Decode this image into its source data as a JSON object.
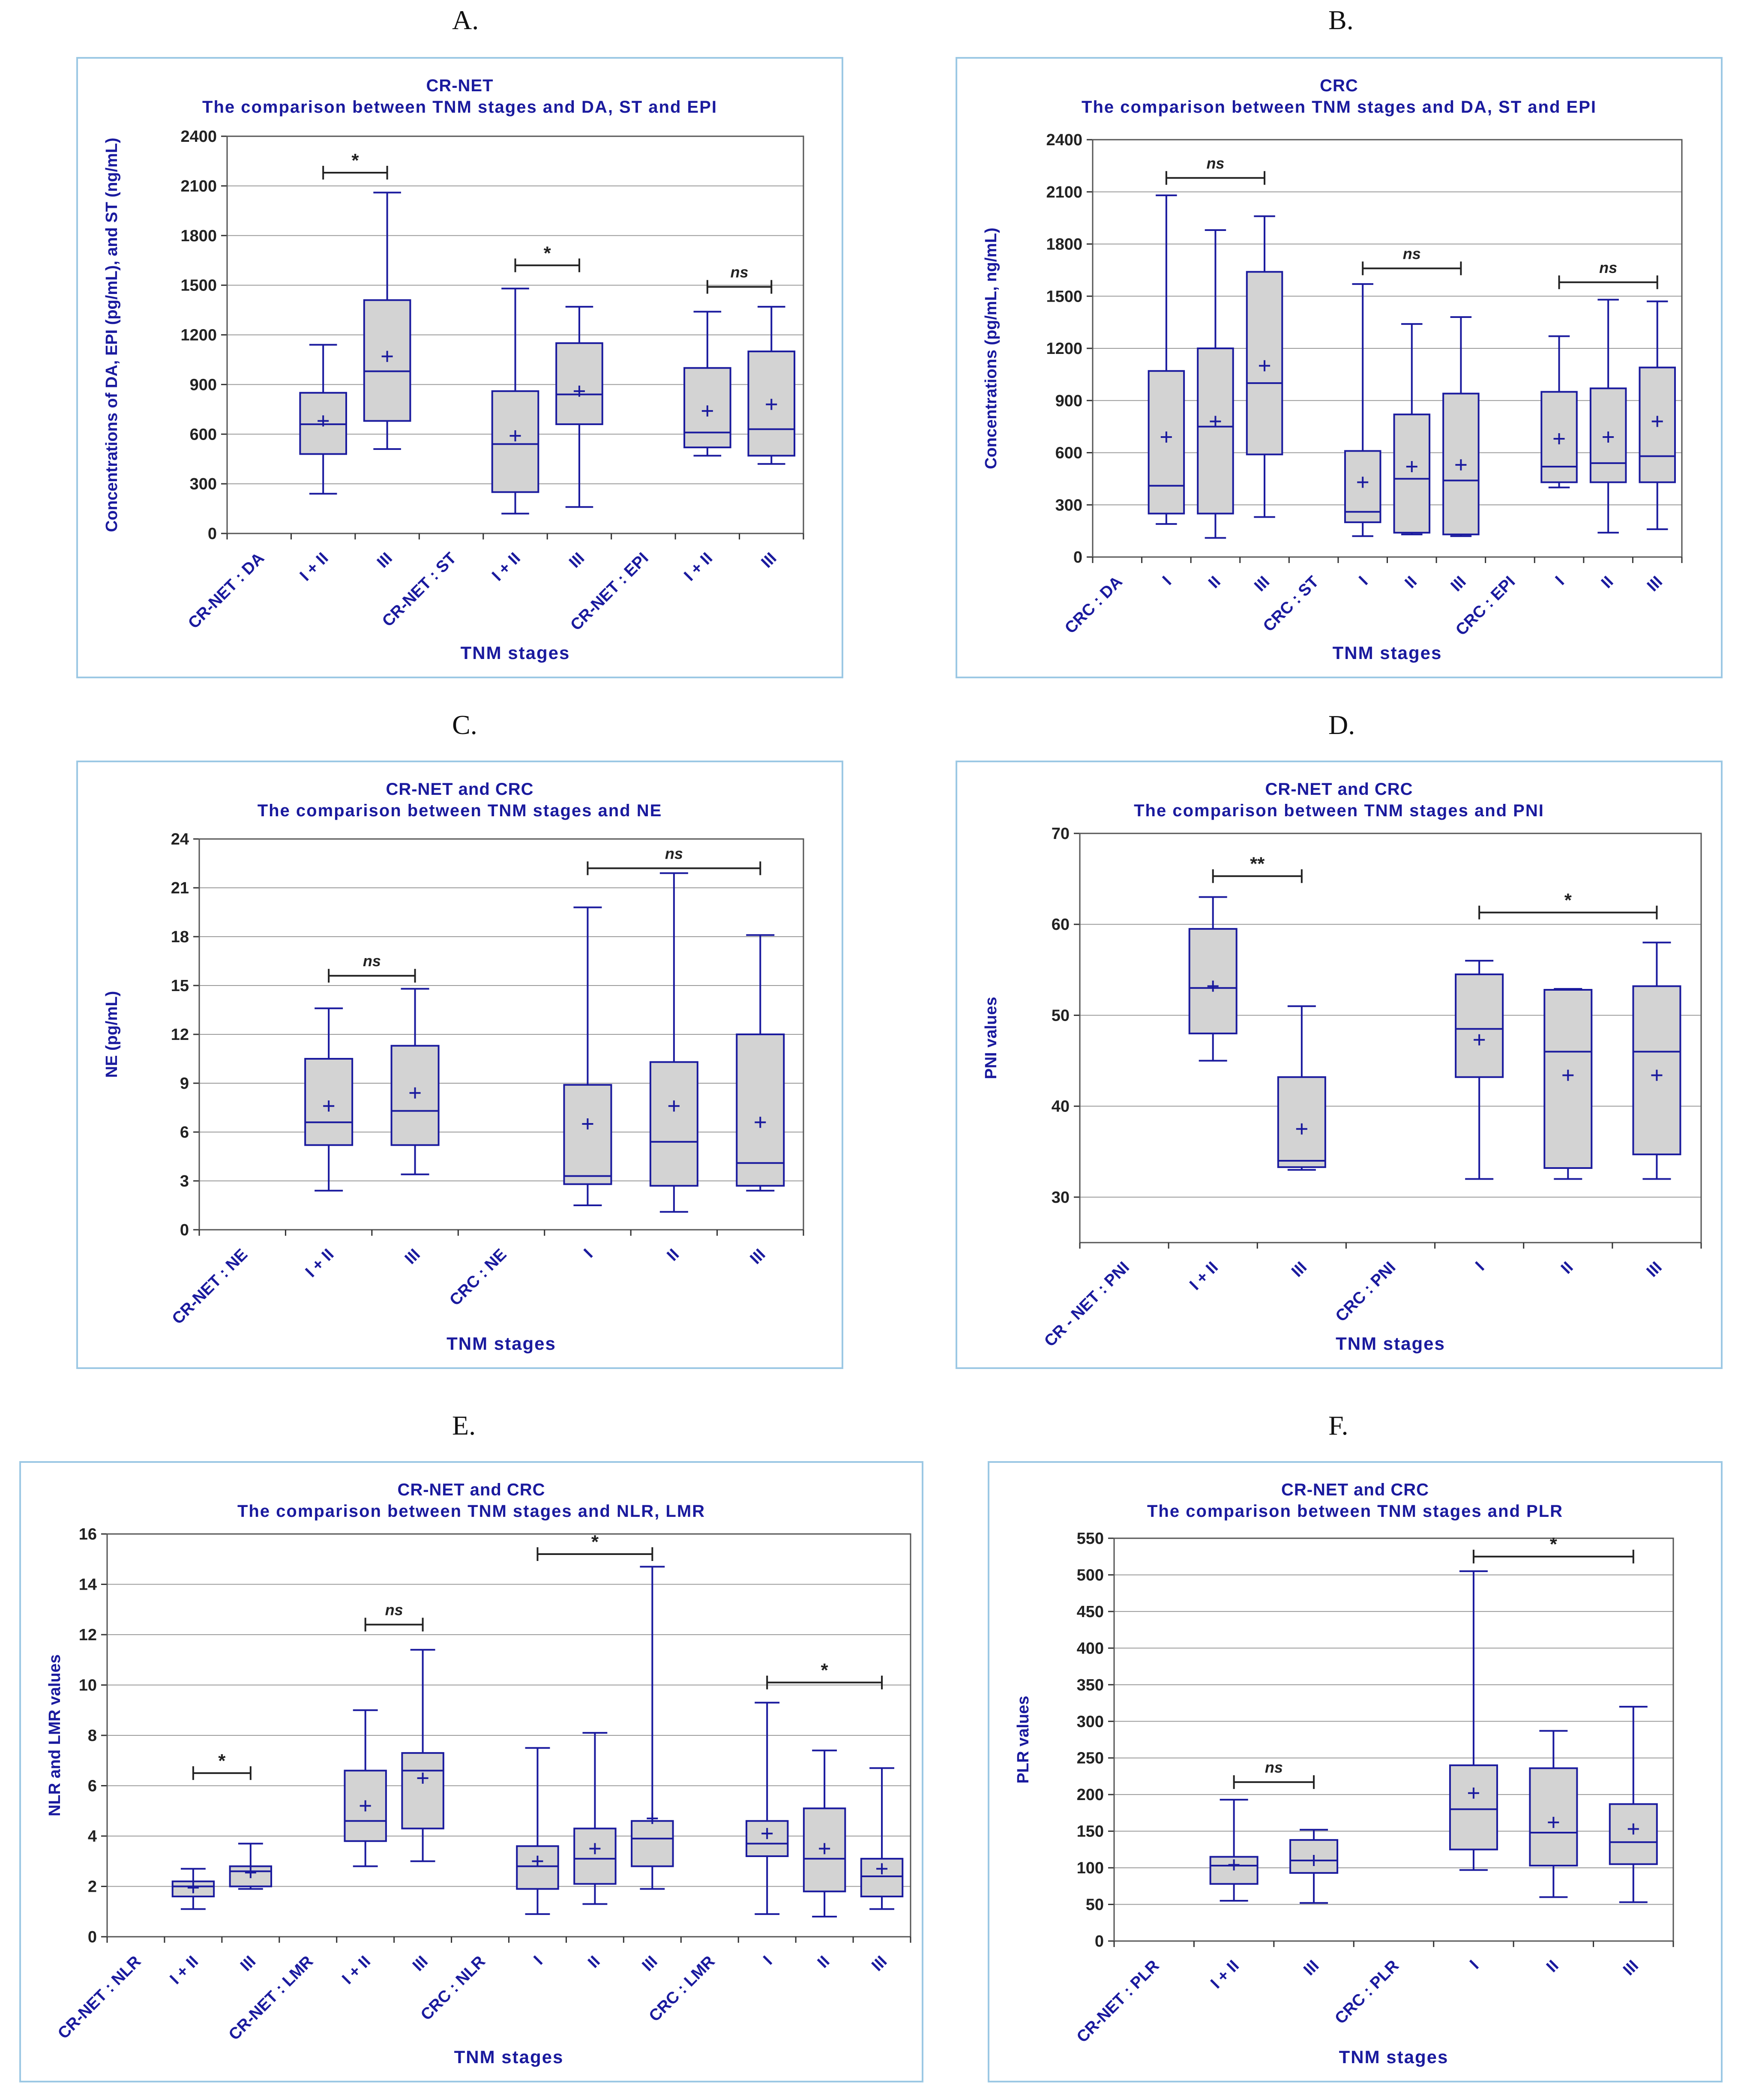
{
  "colors": {
    "ink": "#1a1a9e",
    "box_fill": "#d3d3d3",
    "grid": "#9a9a9a",
    "frame": "#9cc8e4",
    "plot_border": "#555555"
  },
  "chart_data": [
    {
      "panel": "A.",
      "type": "box",
      "title": "CR-NET",
      "subtitle": "The comparison between TNM stages and DA, ST and EPI",
      "xlabel": "TNM stages",
      "ylabel": "Concentrations of DA, EPI (pg/mL), and ST (ng/mL)",
      "ylim": [
        0,
        2400
      ],
      "yticks": [
        0,
        300,
        600,
        900,
        1200,
        1500,
        1800,
        2100,
        2400
      ],
      "categories": [
        "CR-NET : DA",
        "I + II",
        "III",
        "CR-NET : ST",
        "I + II",
        "III",
        "CR-NET : EPI",
        "I + II",
        "III"
      ],
      "boxes": [
        {
          "cat": 1,
          "min": 240,
          "q1": 480,
          "median": 660,
          "q3": 850,
          "max": 1140,
          "mean": 680
        },
        {
          "cat": 2,
          "min": 510,
          "q1": 680,
          "median": 980,
          "q3": 1410,
          "max": 2060,
          "mean": 1070
        },
        {
          "cat": 4,
          "min": 120,
          "q1": 250,
          "median": 540,
          "q3": 860,
          "max": 1480,
          "mean": 590
        },
        {
          "cat": 5,
          "min": 160,
          "q1": 660,
          "median": 840,
          "q3": 1150,
          "max": 1370,
          "mean": 860
        },
        {
          "cat": 7,
          "min": 470,
          "q1": 520,
          "median": 610,
          "q3": 1000,
          "max": 1340,
          "mean": 740
        },
        {
          "cat": 8,
          "min": 420,
          "q1": 470,
          "median": 630,
          "q3": 1100,
          "max": 1370,
          "mean": 780
        }
      ],
      "annotations": [
        {
          "from": 1,
          "to": 2,
          "y": 2180,
          "label": "*"
        },
        {
          "from": 4,
          "to": 5,
          "y": 1620,
          "label": "*"
        },
        {
          "from": 7,
          "to": 8,
          "y": 1490,
          "label": "ns"
        }
      ]
    },
    {
      "panel": "B.",
      "type": "box",
      "title": "CRC",
      "subtitle": "The comparison between TNM stages and DA, ST and EPI",
      "xlabel": "TNM stages",
      "ylabel": "Concentrations (pg/mL, ng/mL)",
      "ylim": [
        0,
        2400
      ],
      "yticks": [
        0,
        300,
        600,
        900,
        1200,
        1500,
        1800,
        2100,
        2400
      ],
      "categories": [
        "CRC : DA",
        "I",
        "II",
        "III",
        "CRC : ST",
        "I",
        "II",
        "III",
        "CRC : EPI",
        "I",
        "II",
        "III"
      ],
      "boxes": [
        {
          "cat": 1,
          "min": 190,
          "q1": 250,
          "median": 410,
          "q3": 1070,
          "max": 2080,
          "mean": 690
        },
        {
          "cat": 2,
          "min": 110,
          "q1": 250,
          "median": 750,
          "q3": 1200,
          "max": 1880,
          "mean": 780
        },
        {
          "cat": 3,
          "min": 230,
          "q1": 590,
          "median": 1000,
          "q3": 1640,
          "max": 1960,
          "mean": 1100
        },
        {
          "cat": 5,
          "min": 120,
          "q1": 200,
          "median": 260,
          "q3": 610,
          "max": 1570,
          "mean": 430
        },
        {
          "cat": 6,
          "min": 130,
          "q1": 140,
          "median": 450,
          "q3": 820,
          "max": 1340,
          "mean": 520
        },
        {
          "cat": 7,
          "min": 120,
          "q1": 130,
          "median": 440,
          "q3": 940,
          "max": 1380,
          "mean": 530
        },
        {
          "cat": 9,
          "min": 400,
          "q1": 430,
          "median": 520,
          "q3": 950,
          "max": 1270,
          "mean": 680
        },
        {
          "cat": 10,
          "min": 140,
          "q1": 430,
          "median": 540,
          "q3": 970,
          "max": 1480,
          "mean": 690
        },
        {
          "cat": 11,
          "min": 160,
          "q1": 430,
          "median": 580,
          "q3": 1090,
          "max": 1470,
          "mean": 780
        }
      ],
      "annotations": [
        {
          "from": 1,
          "to": 3,
          "y": 2180,
          "label": "ns"
        },
        {
          "from": 5,
          "to": 7,
          "y": 1660,
          "label": "ns"
        },
        {
          "from": 9,
          "to": 11,
          "y": 1580,
          "label": "ns"
        }
      ]
    },
    {
      "panel": "C.",
      "type": "box",
      "title": "CR-NET and CRC",
      "subtitle": "The comparison between TNM stages and NE",
      "xlabel": "TNM stages",
      "ylabel": "NE (pg/mL)",
      "ylim": [
        0,
        24
      ],
      "yticks": [
        0,
        3,
        6,
        9,
        12,
        15,
        18,
        21,
        24
      ],
      "categories": [
        "CR-NET : NE",
        "I + II",
        "III",
        "CRC : NE",
        "I",
        "II",
        "III"
      ],
      "boxes": [
        {
          "cat": 1,
          "min": 2.4,
          "q1": 5.2,
          "median": 6.6,
          "q3": 10.5,
          "max": 13.6,
          "mean": 7.6
        },
        {
          "cat": 2,
          "min": 3.4,
          "q1": 5.2,
          "median": 7.3,
          "q3": 11.3,
          "max": 14.8,
          "mean": 8.4
        },
        {
          "cat": 4,
          "min": 1.5,
          "q1": 2.8,
          "median": 3.3,
          "q3": 8.9,
          "max": 19.8,
          "mean": 6.5
        },
        {
          "cat": 5,
          "min": 1.1,
          "q1": 2.7,
          "median": 5.4,
          "q3": 10.3,
          "max": 21.9,
          "mean": 7.6
        },
        {
          "cat": 6,
          "min": 2.4,
          "q1": 2.7,
          "median": 4.1,
          "q3": 12.0,
          "max": 18.1,
          "mean": 6.6
        }
      ],
      "annotations": [
        {
          "from": 1,
          "to": 2,
          "y": 15.6,
          "label": "ns"
        },
        {
          "from": 4,
          "to": 6,
          "y": 22.2,
          "label": "ns"
        }
      ]
    },
    {
      "panel": "D.",
      "type": "box",
      "title": "CR-NET and CRC",
      "subtitle": "The comparison between TNM stages and PNI",
      "xlabel": "TNM stages",
      "ylabel": "PNI values",
      "ylim": [
        25,
        70
      ],
      "yticks": [
        30,
        40,
        50,
        60,
        70
      ],
      "categories": [
        "CR - NET : PNI",
        "I + II",
        "III",
        "CRC : PNI",
        "I",
        "II",
        "III"
      ],
      "boxes": [
        {
          "cat": 1,
          "min": 45,
          "q1": 48,
          "median": 53,
          "q3": 59.5,
          "max": 63,
          "mean": 53.2
        },
        {
          "cat": 2,
          "min": 33,
          "q1": 33.3,
          "median": 34,
          "q3": 43.2,
          "max": 51,
          "mean": 37.5
        },
        {
          "cat": 4,
          "min": 32,
          "q1": 43.2,
          "median": 48.5,
          "q3": 54.5,
          "max": 56,
          "mean": 47.3
        },
        {
          "cat": 5,
          "min": 32,
          "q1": 33.2,
          "median": 46,
          "q3": 52.8,
          "max": 52.9,
          "mean": 43.4
        },
        {
          "cat": 6,
          "min": 32,
          "q1": 34.7,
          "median": 46,
          "q3": 53.2,
          "max": 58,
          "mean": 43.4
        }
      ],
      "annotations": [
        {
          "from": 1,
          "to": 2,
          "y": 65.3,
          "label": "**"
        },
        {
          "from": 4,
          "to": 6,
          "y": 61.3,
          "label": "*"
        }
      ]
    },
    {
      "panel": "E.",
      "type": "box",
      "title": "CR-NET and CRC",
      "subtitle": "The comparison between TNM stages and NLR, LMR",
      "xlabel": "TNM stages",
      "ylabel": "NLR and LMR values",
      "ylim": [
        0,
        16
      ],
      "yticks": [
        0,
        2,
        4,
        6,
        8,
        10,
        12,
        14,
        16
      ],
      "categories": [
        "CR-NET : NLR",
        "I + II",
        "III",
        "CR-NET : LMR",
        "I + II",
        "III",
        "CRC : NLR",
        "I",
        "II",
        "III",
        "CRC : LMR",
        "I",
        "II",
        "III"
      ],
      "boxes": [
        {
          "cat": 1,
          "min": 1.1,
          "q1": 1.6,
          "median": 2.0,
          "q3": 2.2,
          "max": 2.7,
          "mean": 1.95
        },
        {
          "cat": 2,
          "min": 1.9,
          "q1": 2.0,
          "median": 2.6,
          "q3": 2.8,
          "max": 3.7,
          "mean": 2.55
        },
        {
          "cat": 4,
          "min": 2.8,
          "q1": 3.8,
          "median": 4.6,
          "q3": 6.6,
          "max": 9.0,
          "mean": 5.2
        },
        {
          "cat": 5,
          "min": 3.0,
          "q1": 4.3,
          "median": 6.6,
          "q3": 7.3,
          "max": 11.4,
          "mean": 6.3
        },
        {
          "cat": 7,
          "min": 0.9,
          "q1": 1.9,
          "median": 2.8,
          "q3": 3.6,
          "max": 7.5,
          "mean": 3.0
        },
        {
          "cat": 8,
          "min": 1.3,
          "q1": 2.1,
          "median": 3.1,
          "q3": 4.3,
          "max": 8.1,
          "mean": 3.5
        },
        {
          "cat": 9,
          "min": 1.9,
          "q1": 2.8,
          "median": 3.9,
          "q3": 4.6,
          "max": 14.7,
          "mean": 4.7
        },
        {
          "cat": 11,
          "min": 0.9,
          "q1": 3.2,
          "median": 3.7,
          "q3": 4.6,
          "max": 9.3,
          "mean": 4.1
        },
        {
          "cat": 12,
          "min": 0.8,
          "q1": 1.8,
          "median": 3.1,
          "q3": 5.1,
          "max": 7.4,
          "mean": 3.5
        },
        {
          "cat": 13,
          "min": 1.1,
          "q1": 1.6,
          "median": 2.4,
          "q3": 3.1,
          "max": 6.7,
          "mean": 2.7
        }
      ],
      "annotations": [
        {
          "from": 1,
          "to": 2,
          "y": 6.5,
          "label": "*"
        },
        {
          "from": 4,
          "to": 5,
          "y": 12.4,
          "label": "ns"
        },
        {
          "from": 7,
          "to": 9,
          "y": 15.2,
          "label": "*"
        },
        {
          "from": 11,
          "to": 13,
          "y": 10.1,
          "label": "*"
        }
      ]
    },
    {
      "panel": "F.",
      "type": "box",
      "title": "CR-NET and CRC",
      "subtitle": "The comparison between TNM stages and PLR",
      "xlabel": "TNM stages",
      "ylabel": "PLR values",
      "ylim": [
        0,
        550
      ],
      "yticks": [
        0,
        50,
        100,
        150,
        200,
        250,
        300,
        350,
        400,
        450,
        500,
        550
      ],
      "categories": [
        "CR-NET : PLR",
        "I + II",
        "III",
        "CRC : PLR",
        "I",
        "II",
        "III"
      ],
      "boxes": [
        {
          "cat": 1,
          "min": 55,
          "q1": 78,
          "median": 103,
          "q3": 115,
          "max": 193,
          "mean": 104
        },
        {
          "cat": 2,
          "min": 52,
          "q1": 93,
          "median": 110,
          "q3": 138,
          "max": 152,
          "mean": 110
        },
        {
          "cat": 4,
          "min": 97,
          "q1": 125,
          "median": 180,
          "q3": 240,
          "max": 505,
          "mean": 202
        },
        {
          "cat": 5,
          "min": 60,
          "q1": 103,
          "median": 148,
          "q3": 236,
          "max": 287,
          "mean": 162
        },
        {
          "cat": 6,
          "min": 53,
          "q1": 105,
          "median": 135,
          "q3": 187,
          "max": 320,
          "mean": 153
        }
      ],
      "annotations": [
        {
          "from": 1,
          "to": 2,
          "y": 217,
          "label": "ns"
        },
        {
          "from": 4,
          "to": 6,
          "y": 525,
          "label": "*"
        }
      ]
    }
  ]
}
